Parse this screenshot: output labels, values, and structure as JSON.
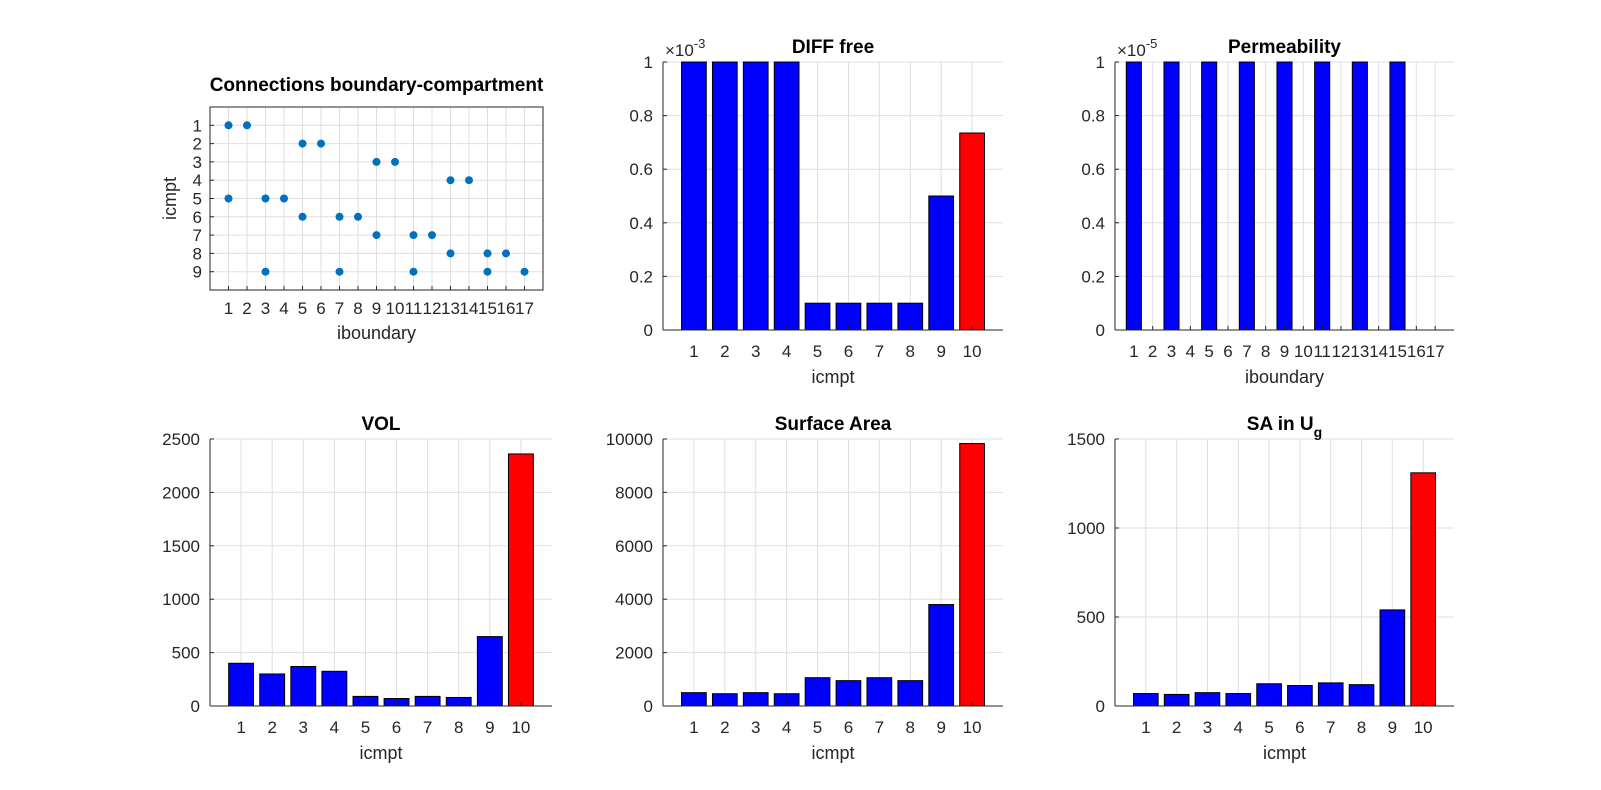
{
  "colors": {
    "blue": "#0000ff",
    "red": "#ff0000",
    "dot": "#0072bd"
  },
  "chart_data": [
    {
      "type": "scatter",
      "title": "Connections boundary-compartment",
      "xlabel": "iboundary",
      "ylabel": "icmpt",
      "xlim": [
        0,
        18
      ],
      "ylim": [
        0,
        10
      ],
      "y_reversed": true,
      "grid": true,
      "xticks": [
        1,
        2,
        3,
        4,
        5,
        6,
        7,
        8,
        9,
        10,
        11,
        12,
        13,
        14,
        15,
        16,
        17
      ],
      "xticklabels": [
        "1",
        "2",
        "3",
        "4",
        "5",
        "6",
        "7",
        "8",
        "9",
        "10",
        "11",
        "12",
        "13",
        "14",
        "15",
        "16",
        "17"
      ],
      "yticks": [
        1,
        2,
        3,
        4,
        5,
        6,
        7,
        8,
        9
      ],
      "yticklabels": [
        "1",
        "2",
        "3",
        "4",
        "5",
        "6",
        "7",
        "8",
        "9"
      ],
      "points": [
        [
          1,
          1
        ],
        [
          2,
          1
        ],
        [
          1,
          5
        ],
        [
          3,
          5
        ],
        [
          4,
          5
        ],
        [
          5,
          2
        ],
        [
          6,
          2
        ],
        [
          5,
          6
        ],
        [
          3,
          9
        ],
        [
          7,
          6
        ],
        [
          8,
          6
        ],
        [
          7,
          9
        ],
        [
          9,
          3
        ],
        [
          10,
          3
        ],
        [
          9,
          7
        ],
        [
          11,
          7
        ],
        [
          12,
          7
        ],
        [
          11,
          9
        ],
        [
          13,
          4
        ],
        [
          14,
          4
        ],
        [
          13,
          8
        ],
        [
          15,
          8
        ],
        [
          16,
          8
        ],
        [
          15,
          9
        ],
        [
          17,
          9
        ]
      ]
    },
    {
      "type": "bar",
      "title": "DIFF free",
      "xlabel": "icmpt",
      "ylabel": "",
      "exponent_label": "×10",
      "exponent_power": "-3",
      "categories": [
        "1",
        "2",
        "3",
        "4",
        "5",
        "6",
        "7",
        "8",
        "9",
        "10"
      ],
      "values": [
        1,
        1,
        1,
        1,
        0.1,
        0.1,
        0.1,
        0.1,
        0.5,
        0.735
      ],
      "highlight_index": 9,
      "ylim": [
        0,
        1
      ],
      "yticks": [
        0,
        0.2,
        0.4,
        0.6,
        0.8,
        1
      ],
      "yticklabels": [
        "0",
        "0.2",
        "0.4",
        "0.6",
        "0.8",
        "1"
      ],
      "grid": true
    },
    {
      "type": "bar",
      "title": "Permeability",
      "xlabel": "iboundary",
      "ylabel": "",
      "exponent_label": "×10",
      "exponent_power": "-5",
      "categories": [
        "1",
        "2",
        "3",
        "4",
        "5",
        "6",
        "7",
        "8",
        "9",
        "10",
        "11",
        "12",
        "13",
        "14",
        "15",
        "16",
        "17"
      ],
      "values": [
        1,
        0,
        1,
        0,
        1,
        0,
        1,
        0,
        1,
        0,
        1,
        0,
        1,
        0,
        1,
        0,
        0
      ],
      "highlight_index": -1,
      "ylim": [
        0,
        1
      ],
      "yticks": [
        0,
        0.2,
        0.4,
        0.6,
        0.8,
        1
      ],
      "yticklabels": [
        "0",
        "0.2",
        "0.4",
        "0.6",
        "0.8",
        "1"
      ],
      "grid": true
    },
    {
      "type": "bar",
      "title": "VOL",
      "xlabel": "icmpt",
      "ylabel": "",
      "categories": [
        "1",
        "2",
        "3",
        "4",
        "5",
        "6",
        "7",
        "8",
        "9",
        "10"
      ],
      "values": [
        400,
        300,
        370,
        325,
        90,
        70,
        90,
        80,
        650,
        2360
      ],
      "highlight_index": 9,
      "ylim": [
        0,
        2500
      ],
      "yticks": [
        0,
        500,
        1000,
        1500,
        2000,
        2500
      ],
      "yticklabels": [
        "0",
        "500",
        "1000",
        "1500",
        "2000",
        "2500"
      ],
      "grid": true
    },
    {
      "type": "bar",
      "title": "Surface Area",
      "xlabel": "icmpt",
      "ylabel": "",
      "categories": [
        "1",
        "2",
        "3",
        "4",
        "5",
        "6",
        "7",
        "8",
        "9",
        "10"
      ],
      "values": [
        500,
        460,
        500,
        460,
        1060,
        950,
        1060,
        950,
        3800,
        9830
      ],
      "highlight_index": 9,
      "ylim": [
        0,
        10000
      ],
      "yticks": [
        0,
        2000,
        4000,
        6000,
        8000,
        10000
      ],
      "yticklabels": [
        "0",
        "2000",
        "4000",
        "6000",
        "8000",
        "10000"
      ],
      "grid": true
    },
    {
      "type": "bar",
      "title": "SA in U",
      "title_subscript": "g",
      "xlabel": "icmpt",
      "ylabel": "",
      "categories": [
        "1",
        "2",
        "3",
        "4",
        "5",
        "6",
        "7",
        "8",
        "9",
        "10"
      ],
      "values": [
        70,
        65,
        75,
        70,
        125,
        115,
        130,
        120,
        540,
        1310
      ],
      "highlight_index": 9,
      "ylim": [
        0,
        1500
      ],
      "yticks": [
        0,
        500,
        1000,
        1500
      ],
      "yticklabels": [
        "0",
        "500",
        "1000",
        "1500"
      ],
      "grid": true
    }
  ]
}
